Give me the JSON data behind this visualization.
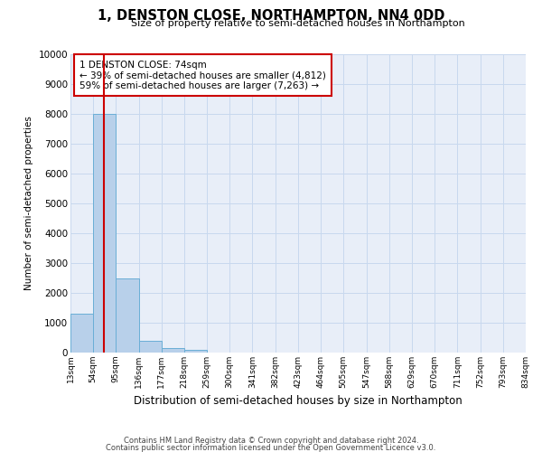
{
  "title": "1, DENSTON CLOSE, NORTHAMPTON, NN4 0DD",
  "subtitle": "Size of property relative to semi-detached houses in Northampton",
  "xlabel": "Distribution of semi-detached houses by size in Northampton",
  "ylabel": "Number of semi-detached properties",
  "footer_line1": "Contains HM Land Registry data © Crown copyright and database right 2024.",
  "footer_line2": "Contains public sector information licensed under the Open Government Licence v3.0.",
  "property_label": "1 DENSTON CLOSE: 74sqm",
  "annotation_line1": "← 39% of semi-detached houses are smaller (4,812)",
  "annotation_line2": "59% of semi-detached houses are larger (7,263) →",
  "bar_edges": [
    13,
    54,
    95,
    136,
    177,
    218,
    259,
    300,
    341,
    382,
    423,
    464,
    505,
    547,
    588,
    629,
    670,
    711,
    752,
    793,
    834
  ],
  "bar_heights": [
    1300,
    8000,
    2500,
    400,
    150,
    100,
    0,
    0,
    0,
    0,
    0,
    0,
    0,
    0,
    0,
    0,
    0,
    0,
    0,
    0
  ],
  "bar_color": "#b8d0ea",
  "bar_edge_color": "#6aaed6",
  "vline_color": "#cc0000",
  "vline_x": 74,
  "ylim": [
    0,
    10000
  ],
  "yticks": [
    0,
    1000,
    2000,
    3000,
    4000,
    5000,
    6000,
    7000,
    8000,
    9000,
    10000
  ],
  "annotation_box_color": "#ffffff",
  "annotation_box_edge": "#cc0000",
  "grid_color": "#c8d8ee",
  "bg_color": "#e8eef8"
}
